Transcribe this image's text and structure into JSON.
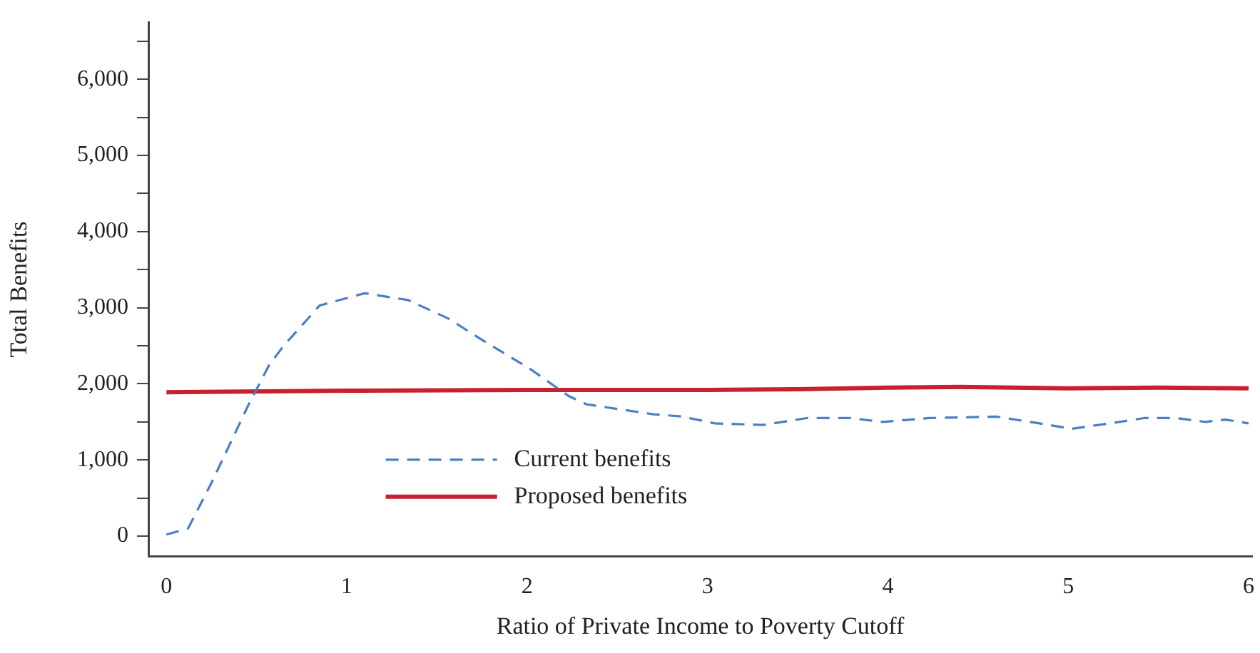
{
  "chart_data": {
    "type": "line",
    "xlabel": "Ratio of Private Income to Poverty Cutoff",
    "ylabel": "Total Benefits",
    "xlim": [
      -0.1,
      6.02
    ],
    "xticks": [
      0,
      1,
      2,
      3,
      4,
      5,
      6
    ],
    "ylim": [
      -270,
      6750
    ],
    "yticks": [
      0,
      {
        "value": 500,
        "label": null
      },
      {
        "value": 1000,
        "label": "1,000"
      },
      {
        "value": 1500,
        "label": null
      },
      {
        "value": 2000,
        "label": "2,000"
      },
      {
        "value": 2500,
        "label": null
      },
      {
        "value": 3000,
        "label": "3,000"
      },
      {
        "value": 3500,
        "label": null
      },
      {
        "value": 4000,
        "label": "4,000"
      },
      {
        "value": 4500,
        "label": null
      },
      {
        "value": 5000,
        "label": "5,000"
      },
      {
        "value": 5500,
        "label": null
      },
      {
        "value": 6000,
        "label": "6,000"
      },
      {
        "value": 6500,
        "label": null
      }
    ],
    "grid": false,
    "legend": "bottom",
    "marker": "none",
    "series": [
      {
        "name": "Current benefits",
        "color": "#4a7fc8",
        "line_style": "dashed",
        "x": [
          0,
          0.12,
          0.25,
          0.45,
          0.57,
          0.65,
          0.85,
          1.1,
          1.34,
          1.57,
          1.7,
          2.02,
          2.23,
          2.33,
          2.7,
          2.86,
          3.04,
          3.31,
          3.55,
          3.79,
          3.97,
          4.23,
          4.6,
          4.84,
          5.02,
          5.23,
          5.42,
          5.6,
          5.76,
          5.87,
          6.0
        ],
        "values": [
          20,
          100,
          700,
          1700,
          2250,
          2500,
          3030,
          3190,
          3100,
          2850,
          2650,
          2190,
          1840,
          1730,
          1600,
          1570,
          1480,
          1460,
          1550,
          1550,
          1500,
          1550,
          1570,
          1480,
          1410,
          1480,
          1550,
          1550,
          1500,
          1530,
          1480
        ]
      },
      {
        "name": "Proposed benefits",
        "color": "#c8202e",
        "line_style": "solid",
        "x": [
          0,
          1,
          2,
          3,
          3.5,
          4,
          4.4,
          5,
          5.5,
          6
        ],
        "values": [
          1890,
          1910,
          1920,
          1920,
          1930,
          1950,
          1960,
          1940,
          1950,
          1940
        ]
      }
    ]
  }
}
